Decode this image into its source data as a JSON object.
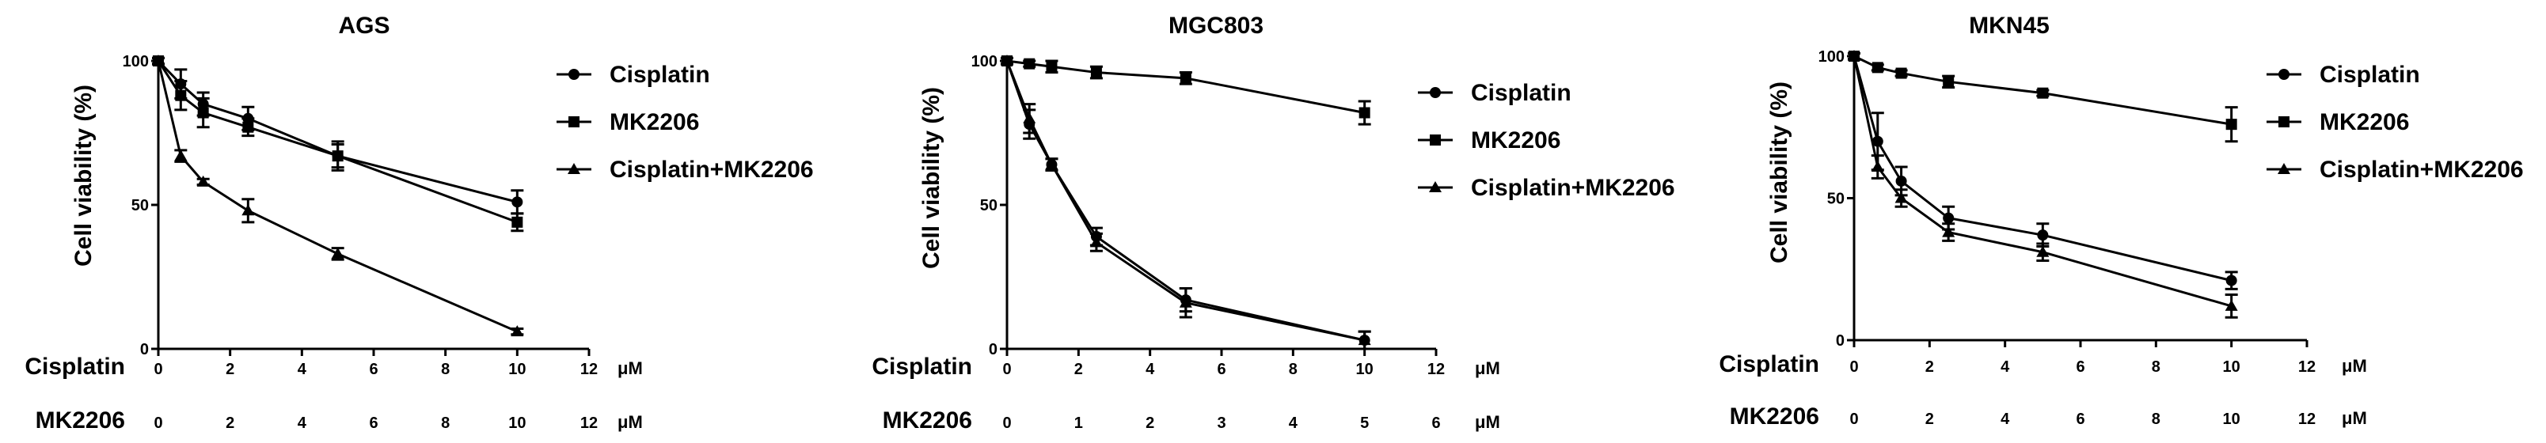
{
  "charts": [
    {
      "title": "AGS",
      "ylabel": "Cell viability (%)",
      "yticks": [
        "0",
        "50",
        "100"
      ],
      "row1": {
        "label": "Cisplatin",
        "ticks": [
          "0",
          "2",
          "4",
          "6",
          "8",
          "10",
          "12"
        ],
        "unit": "μM"
      },
      "row2": {
        "label": "MK2206",
        "ticks": [
          "0",
          "2",
          "4",
          "6",
          "8",
          "10",
          "12"
        ],
        "unit": "μM"
      },
      "legend": [
        "Cisplatin",
        "MK2206",
        "Cisplatin+MK2206"
      ]
    },
    {
      "title": "MGC803",
      "ylabel": "Cell viability (%)",
      "yticks": [
        "0",
        "50",
        "100"
      ],
      "row1": {
        "label": "Cisplatin",
        "ticks": [
          "0",
          "2",
          "4",
          "6",
          "8",
          "10",
          "12"
        ],
        "unit": "μM"
      },
      "row2": {
        "label": "MK2206",
        "ticks": [
          "0",
          "1",
          "2",
          "3",
          "4",
          "5",
          "6"
        ],
        "unit": "μM"
      },
      "legend": [
        "Cisplatin",
        "MK2206",
        "Cisplatin+MK2206"
      ]
    },
    {
      "title": "MKN45",
      "ylabel": "Cell viability (%)",
      "yticks": [
        "0",
        "50",
        "100"
      ],
      "row1": {
        "label": "Cisplatin",
        "ticks": [
          "0",
          "2",
          "4",
          "6",
          "8",
          "10",
          "12"
        ],
        "unit": "μM"
      },
      "row2": {
        "label": "MK2206",
        "ticks": [
          "0",
          "2",
          "4",
          "6",
          "8",
          "10",
          "12"
        ],
        "unit": "μM"
      },
      "legend": [
        "Cisplatin",
        "MK2206",
        "Cisplatin+MK2206"
      ]
    }
  ],
  "chart_data": [
    {
      "type": "line",
      "title": "AGS",
      "xlabel": "Cisplatin (μM)",
      "ylabel": "Cell viability (%)",
      "xlim": [
        0,
        12
      ],
      "ylim": [
        0,
        100
      ],
      "grid": false,
      "legend_position": "right",
      "series": [
        {
          "name": "Cisplatin",
          "marker": "circle",
          "x": [
            0,
            0.625,
            1.25,
            2.5,
            5,
            10
          ],
          "y": [
            100,
            92,
            85,
            80,
            67,
            51
          ],
          "err": [
            1,
            5,
            4,
            4,
            4,
            4
          ]
        },
        {
          "name": "MK2206",
          "marker": "square",
          "x": [
            0,
            0.625,
            1.25,
            2.5,
            5,
            10
          ],
          "y": [
            100,
            88,
            82,
            77,
            67,
            44
          ],
          "err": [
            1,
            5,
            5,
            3,
            5,
            3
          ]
        },
        {
          "name": "Cisplatin+MK2206",
          "marker": "triangle",
          "x": [
            0,
            0.625,
            1.25,
            2.5,
            5,
            10
          ],
          "y": [
            100,
            67,
            58,
            48,
            33,
            6
          ],
          "err": [
            1,
            2,
            1,
            4,
            2,
            1
          ]
        }
      ]
    },
    {
      "type": "line",
      "title": "MGC803",
      "xlabel": "Cisplatin (μM)",
      "ylabel": "Cell viability (%)",
      "xlim": [
        0,
        6
      ],
      "ylim": [
        0,
        100
      ],
      "grid": false,
      "legend_position": "right",
      "series": [
        {
          "name": "Cisplatin",
          "marker": "circle",
          "x": [
            0,
            0.3125,
            0.625,
            1.25,
            2.5,
            5
          ],
          "y": [
            100,
            78,
            64,
            39,
            17,
            3
          ],
          "err": [
            1,
            5,
            2,
            3,
            4,
            3
          ]
        },
        {
          "name": "MK2206",
          "marker": "square",
          "x": [
            0,
            0.3125,
            0.625,
            1.25,
            2.5,
            5
          ],
          "y": [
            100,
            99,
            98,
            96,
            94,
            82
          ],
          "err": [
            1,
            1,
            2,
            2,
            2,
            4
          ]
        },
        {
          "name": "Cisplatin+MK2206",
          "marker": "triangle",
          "x": [
            0,
            0.3125,
            0.625,
            1.25,
            2.5,
            5
          ],
          "y": [
            100,
            80,
            64,
            37,
            16,
            3
          ],
          "err": [
            1,
            5,
            2,
            3,
            5,
            3
          ]
        }
      ]
    },
    {
      "type": "line",
      "title": "MKN45",
      "xlabel": "Cisplatin (μM)",
      "ylabel": "Cell viability (%)",
      "xlim": [
        0,
        12
      ],
      "ylim": [
        0,
        100
      ],
      "grid": false,
      "legend_position": "right",
      "series": [
        {
          "name": "Cisplatin",
          "marker": "circle",
          "x": [
            0,
            0.625,
            1.25,
            2.5,
            5,
            10
          ],
          "y": [
            100,
            70,
            56,
            43,
            37,
            21
          ],
          "err": [
            1,
            10,
            5,
            4,
            4,
            3
          ]
        },
        {
          "name": "MK2206",
          "marker": "square",
          "x": [
            0,
            0.625,
            1.25,
            2.5,
            5,
            10
          ],
          "y": [
            100,
            96,
            94,
            91,
            87,
            76
          ],
          "err": [
            1,
            1,
            1,
            2,
            1,
            6
          ]
        },
        {
          "name": "Cisplatin+MK2206",
          "marker": "triangle",
          "x": [
            0,
            0.625,
            1.25,
            2.5,
            5,
            10
          ],
          "y": [
            100,
            61,
            50,
            38,
            31,
            12
          ],
          "err": [
            1,
            4,
            3,
            3,
            3,
            4
          ]
        }
      ]
    }
  ]
}
